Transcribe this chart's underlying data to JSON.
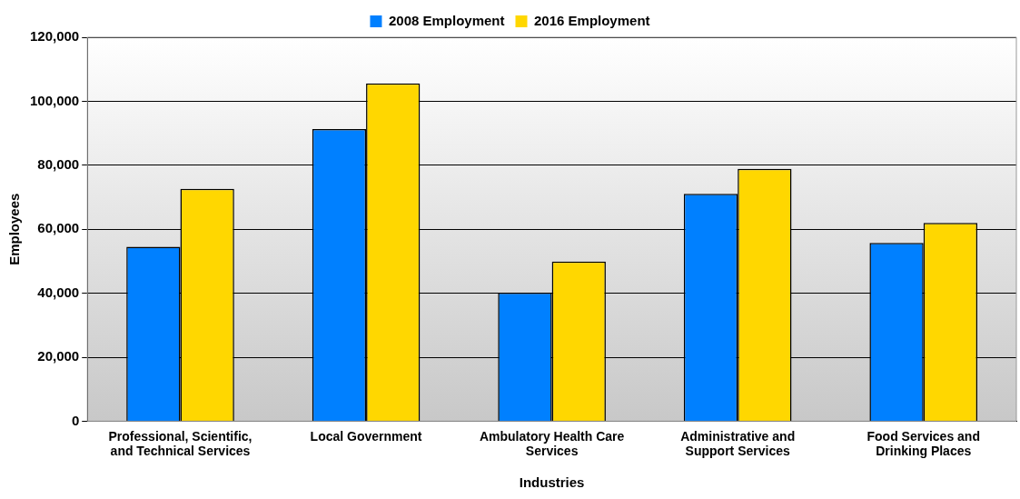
{
  "chart_data": {
    "type": "bar",
    "xlabel": "Industries",
    "ylabel": "Employees",
    "categories": [
      "Professional, Scientific, and Technical Services",
      "Local Government",
      "Ambulatory Health Care Services",
      "Administrative and Support Services",
      "Food Services and Drinking Places"
    ],
    "series": [
      {
        "name": "2008 Employment",
        "color": "#0080ff",
        "values": [
          54500,
          91300,
          40200,
          71100,
          55700
        ]
      },
      {
        "name": "2016 Employment",
        "color": "#ffd700",
        "values": [
          72600,
          105600,
          49900,
          78900,
          62000
        ]
      }
    ],
    "ylim": [
      0,
      120000
    ],
    "yticks": [
      {
        "value": 0,
        "label": "0"
      },
      {
        "value": 20000,
        "label": "20,000"
      },
      {
        "value": 40000,
        "label": "40,000"
      },
      {
        "value": 60000,
        "label": "60,000"
      },
      {
        "value": 80000,
        "label": "80,000"
      },
      {
        "value": 100000,
        "label": "100,000"
      },
      {
        "value": 120000,
        "label": "120,000"
      }
    ],
    "grid": "y",
    "legend": "top"
  }
}
